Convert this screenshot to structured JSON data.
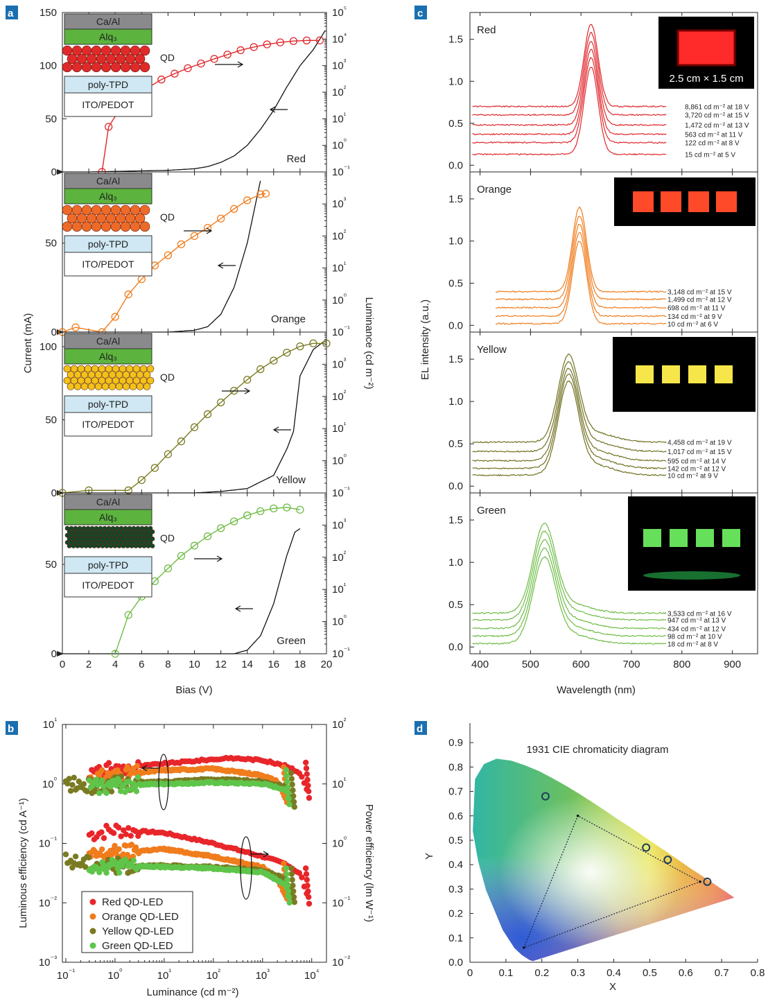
{
  "figure": {
    "panels": [
      "a",
      "b",
      "c",
      "d"
    ]
  },
  "chart_data": [
    {
      "panel": "a",
      "type": "line",
      "xlabel": "Bias (V)",
      "ylabel_left": "Current (mA)",
      "ylabel_right": "Luminance (cd m⁻²)",
      "xlim": [
        0,
        20
      ],
      "xticks": [
        0,
        2,
        4,
        6,
        8,
        10,
        12,
        14,
        16,
        18,
        20
      ],
      "y_right_scale": "log",
      "y_right_ticks": [
        "10⁻¹",
        "10⁰",
        "10¹",
        "10²",
        "10³",
        "10⁴",
        "10⁵"
      ],
      "layers": [
        "Ca/Al",
        "Alq₃",
        "QD",
        "poly-TPD",
        "ITO/PEDOT"
      ],
      "subplots": [
        {
          "name": "Red",
          "color": "#e0262a",
          "ylim_current": [
            0,
            150
          ],
          "yticks_current": [
            0,
            50,
            100,
            150
          ],
          "ylim_lum_exp": [
            -1,
            5
          ],
          "current_mA": [
            [
              0,
              0
            ],
            [
              2,
              0
            ],
            [
              4,
              0.5
            ],
            [
              6,
              1
            ],
            [
              8,
              1.5
            ],
            [
              10,
              3
            ],
            [
              11,
              5
            ],
            [
              12,
              9
            ],
            [
              13,
              15
            ],
            [
              14,
              25
            ],
            [
              15,
              40
            ],
            [
              16,
              58
            ],
            [
              17,
              80
            ],
            [
              18,
              100
            ],
            [
              19,
              115
            ],
            [
              20,
              135
            ]
          ],
          "luminance_cd_m2": [
            [
              3,
              0.1
            ],
            [
              3.5,
              5
            ],
            [
              4.5,
              30
            ],
            [
              5.5,
              70
            ],
            [
              6.5,
              150
            ],
            [
              7.5,
              300
            ],
            [
              8.5,
              500
            ],
            [
              9.5,
              800
            ],
            [
              10.5,
              1200
            ],
            [
              11.5,
              1800
            ],
            [
              12.5,
              2600
            ],
            [
              13.5,
              3800
            ],
            [
              14.5,
              5000
            ],
            [
              15.5,
              6300
            ],
            [
              16.5,
              7500
            ],
            [
              17.5,
              8400
            ],
            [
              18.5,
              8861
            ],
            [
              19.5,
              8900
            ]
          ]
        },
        {
          "name": "Orange",
          "color": "#f07c1c",
          "ylim_current": [
            0,
            90
          ],
          "yticks_current": [
            0,
            50
          ],
          "ylim_lum_exp": [
            -1,
            4
          ],
          "current_mA": [
            [
              0,
              0
            ],
            [
              8,
              0
            ],
            [
              10,
              1
            ],
            [
              11,
              3
            ],
            [
              12,
              10
            ],
            [
              13,
              25
            ],
            [
              14,
              50
            ],
            [
              15,
              85
            ]
          ],
          "luminance_cd_m2": [
            [
              0,
              0.1
            ],
            [
              1,
              0.14
            ],
            [
              3,
              0.1
            ],
            [
              4,
              0.3
            ],
            [
              5,
              1.5
            ],
            [
              6,
              4.5
            ],
            [
              7,
              12
            ],
            [
              8,
              25
            ],
            [
              9,
              55
            ],
            [
              10,
              100
            ],
            [
              11,
              180
            ],
            [
              12,
              350
            ],
            [
              13,
              700
            ],
            [
              14,
              1300
            ],
            [
              15,
              2000
            ],
            [
              15.4,
              2100
            ]
          ]
        },
        {
          "name": "Yellow",
          "color": "#7a7a22",
          "ylim_current": [
            0,
            110
          ],
          "yticks_current": [
            0,
            50,
            100
          ],
          "ylim_lum_exp": [
            -1,
            4
          ],
          "current_mA": [
            [
              0,
              0
            ],
            [
              10,
              0
            ],
            [
              12,
              1
            ],
            [
              14,
              3
            ],
            [
              16,
              12
            ],
            [
              17,
              30
            ],
            [
              17.5,
              42
            ],
            [
              18,
              80
            ],
            [
              19,
              98
            ],
            [
              20,
              105
            ]
          ],
          "luminance_cd_m2": [
            [
              0,
              0.1
            ],
            [
              2,
              0.12
            ],
            [
              5,
              0.12
            ],
            [
              6,
              0.25
            ],
            [
              7,
              0.6
            ],
            [
              8,
              1.6
            ],
            [
              9,
              4
            ],
            [
              10,
              11
            ],
            [
              11,
              28
            ],
            [
              12,
              65
            ],
            [
              13,
              150
            ],
            [
              14,
              330
            ],
            [
              15,
              700
            ],
            [
              16,
              1300
            ],
            [
              17,
              2300
            ],
            [
              18,
              3600
            ],
            [
              19,
              4458
            ],
            [
              20,
              4400
            ]
          ]
        },
        {
          "name": "Green",
          "color": "#6dbb44",
          "ylim_current": [
            0,
            90
          ],
          "yticks_current": [
            0,
            50
          ],
          "ylim_lum_exp": [
            -1,
            4
          ],
          "current_mA": [
            [
              0,
              0
            ],
            [
              13,
              0
            ],
            [
              14,
              2
            ],
            [
              15,
              10
            ],
            [
              16,
              28
            ],
            [
              17,
              55
            ],
            [
              17.6,
              68
            ],
            [
              18,
              70
            ]
          ],
          "luminance_cd_m2": [
            [
              4,
              0.1
            ],
            [
              5,
              1.6
            ],
            [
              6,
              6
            ],
            [
              7,
              18
            ],
            [
              8,
              45
            ],
            [
              9,
              110
            ],
            [
              10,
              230
            ],
            [
              11,
              450
            ],
            [
              12,
              800
            ],
            [
              13,
              1300
            ],
            [
              14,
              2000
            ],
            [
              15,
              2700
            ],
            [
              16,
              3300
            ],
            [
              17,
              3533
            ],
            [
              18,
              3000
            ]
          ]
        }
      ]
    },
    {
      "panel": "b",
      "type": "scatter",
      "xlabel": "Luminance (cd m⁻²)",
      "ylabel_left": "Luminous efficiency (cd A⁻¹)",
      "ylabel_right": "Power efficiency (lm W⁻¹)",
      "x_scale": "log",
      "xticks": [
        "10⁻¹",
        "10⁰",
        "10¹",
        "10²",
        "10³",
        "10⁴"
      ],
      "y_left_ticks": [
        "10⁻³",
        "10⁻²",
        "10⁻¹",
        "10⁰",
        "10¹"
      ],
      "y_right_ticks": [
        "10⁻²",
        "10⁻¹",
        "10⁰",
        "10¹",
        "10²"
      ],
      "legend": {
        "placement": "bottom-left"
      },
      "series": [
        {
          "name": "Red QD-LED",
          "color": "#e8262a",
          "luminous_efficiency": [
            [
              0.3,
              1.5
            ],
            [
              1,
              1.8
            ],
            [
              10,
              2.2
            ],
            [
              100,
              2.6
            ],
            [
              300,
              2.7
            ],
            [
              1000,
              2.5
            ],
            [
              3000,
              2.0
            ],
            [
              6000,
              1.5
            ],
            [
              8861,
              0.6
            ]
          ],
          "power_efficiency": [
            [
              0.3,
              1.4
            ],
            [
              1,
              1.7
            ],
            [
              10,
              1.5
            ],
            [
              100,
              1.0
            ],
            [
              1000,
              0.6
            ],
            [
              3000,
              0.45
            ],
            [
              6000,
              0.3
            ],
            [
              8861,
              0.1
            ]
          ]
        },
        {
          "name": "Orange QD-LED",
          "color": "#f07c1c",
          "luminous_efficiency": [
            [
              0.3,
              1.2
            ],
            [
              1,
              1.4
            ],
            [
              10,
              1.7
            ],
            [
              100,
              1.8
            ],
            [
              1000,
              1.4
            ],
            [
              2000,
              1.1
            ],
            [
              3148,
              0.5
            ]
          ],
          "power_efficiency": [
            [
              0.3,
              0.6
            ],
            [
              1,
              0.7
            ],
            [
              10,
              0.8
            ],
            [
              100,
              0.6
            ],
            [
              1000,
              0.4
            ],
            [
              2000,
              0.25
            ],
            [
              3148,
              0.12
            ]
          ]
        },
        {
          "name": "Yellow QD-LED",
          "color": "#7a7a22",
          "luminous_efficiency": [
            [
              0.1,
              1.0
            ],
            [
              0.3,
              0.9
            ],
            [
              1,
              1.0
            ],
            [
              10,
              1.1
            ],
            [
              100,
              1.2
            ],
            [
              1000,
              1.1
            ],
            [
              3000,
              0.9
            ],
            [
              4458,
              0.4
            ]
          ],
          "power_efficiency": [
            [
              0.1,
              0.5
            ],
            [
              1,
              0.42
            ],
            [
              10,
              0.42
            ],
            [
              100,
              0.4
            ],
            [
              1000,
              0.35
            ],
            [
              3000,
              0.25
            ],
            [
              4458,
              0.1
            ]
          ]
        },
        {
          "name": "Green QD-LED",
          "color": "#5fc54a",
          "luminous_efficiency": [
            [
              0.3,
              0.9
            ],
            [
              1,
              0.95
            ],
            [
              10,
              1.0
            ],
            [
              100,
              1.05
            ],
            [
              1000,
              1.0
            ],
            [
              3000,
              0.8
            ],
            [
              3533,
              0.45
            ]
          ],
          "power_efficiency": [
            [
              0.3,
              0.42
            ],
            [
              1,
              0.42
            ],
            [
              10,
              0.4
            ],
            [
              100,
              0.38
            ],
            [
              1000,
              0.33
            ],
            [
              3000,
              0.2
            ],
            [
              3533,
              0.1
            ]
          ]
        }
      ]
    },
    {
      "panel": "c",
      "type": "line",
      "xlabel": "Wavelength (nm)",
      "ylabel": "EL intensity (a.u.)",
      "xlim": [
        380,
        950
      ],
      "xticks": [
        400,
        500,
        600,
        700,
        800,
        900
      ],
      "subplots": [
        {
          "name": "Red",
          "color": "#e0262a",
          "peak_nm": 620,
          "yticks": [
            0.0,
            0.5,
            1.0,
            1.5
          ],
          "inset_text": "2.5 cm × 1.5 cm",
          "curves": [
            {
              "label": "8,861 cd m⁻² at 18 V",
              "baseline": 0.7,
              "peak": 1.68
            },
            {
              "label": "3,720 cd m⁻² at 15 V",
              "baseline": 0.6,
              "peak": 1.58
            },
            {
              "label": "1,472 cd m⁻² at 13 V",
              "baseline": 0.48,
              "peak": 1.48
            },
            {
              "label": "563 cd m⁻² at 11 V",
              "baseline": 0.37,
              "peak": 1.38
            },
            {
              "label": "122 cd m⁻² at 8 V",
              "baseline": 0.27,
              "peak": 1.28
            },
            {
              "label": "15 cd m⁻² at 5 V",
              "baseline": 0.13,
              "peak": 1.17
            }
          ]
        },
        {
          "name": "Orange",
          "color": "#f07c1c",
          "peak_nm": 597,
          "yticks": [
            0.0,
            0.5,
            1.0,
            1.5
          ],
          "curves": [
            {
              "label": "3,148 cd m⁻² at 15 V",
              "baseline": 0.4,
              "peak": 1.4
            },
            {
              "label": "1,499 cd m⁻² at 12 V",
              "baseline": 0.31,
              "peak": 1.3
            },
            {
              "label": "698 cd m⁻² at 11 V",
              "baseline": 0.21,
              "peak": 1.2
            },
            {
              "label": "134 cd m⁻² at 9 V",
              "baseline": 0.11,
              "peak": 1.1
            },
            {
              "label": "10 cd m⁻² at 6 V",
              "baseline": 0.02,
              "peak": 1.0
            }
          ]
        },
        {
          "name": "Yellow",
          "color": "#6f6f20",
          "peak_nm": 575,
          "yticks": [
            0.0,
            0.5,
            1.0,
            1.5
          ],
          "curves": [
            {
              "label": "4,458 cd m⁻² at 19 V",
              "baseline": 0.52,
              "peak": 1.49
            },
            {
              "label": "1,017 cd m⁻² at 15 V",
              "baseline": 0.41,
              "peak": 1.4
            },
            {
              "label": "595 cd m⁻² at 14 V",
              "baseline": 0.3,
              "peak": 1.32
            },
            {
              "label": "142 cd m⁻² at 12 V",
              "baseline": 0.21,
              "peak": 1.25
            },
            {
              "label": "10 cd m⁻² at 9 V",
              "baseline": 0.13,
              "peak": 1.17
            }
          ]
        },
        {
          "name": "Green",
          "color": "#6dbb44",
          "peak_nm": 527,
          "yticks": [
            0.0,
            0.5,
            1.0,
            1.5
          ],
          "curves": [
            {
              "label": "3,533 cd m⁻² at 16 V",
              "baseline": 0.4,
              "peak": 1.39
            },
            {
              "label": "947 cd m⁻² at 13 V",
              "baseline": 0.32,
              "peak": 1.3
            },
            {
              "label": "434 cd m⁻² at 12 V",
              "baseline": 0.22,
              "peak": 1.2
            },
            {
              "label": "98 cd m⁻² at 10 V",
              "baseline": 0.13,
              "peak": 1.1
            },
            {
              "label": "18 cd m⁻² at 8 V",
              "baseline": 0.04,
              "peak": 1.0
            }
          ]
        }
      ]
    },
    {
      "panel": "d",
      "type": "scatter",
      "title": "1931 CIE chromaticity diagram",
      "xlabel": "X",
      "ylabel": "Y",
      "xlim": [
        0,
        0.8
      ],
      "ylim": [
        0,
        0.9
      ],
      "xticks": [
        0,
        0.1,
        0.2,
        0.3,
        0.4,
        0.5,
        0.6,
        0.7,
        0.8
      ],
      "yticks": [
        0.0,
        0.1,
        0.2,
        0.3,
        0.4,
        0.5,
        0.6,
        0.7,
        0.8,
        0.9
      ],
      "points": [
        {
          "x": 0.21,
          "y": 0.68
        },
        {
          "x": 0.49,
          "y": 0.47
        },
        {
          "x": 0.55,
          "y": 0.42
        },
        {
          "x": 0.66,
          "y": 0.33
        }
      ],
      "gamut_triangle": [
        [
          0.64,
          0.33
        ],
        [
          0.3,
          0.6
        ],
        [
          0.15,
          0.06
        ]
      ]
    }
  ]
}
